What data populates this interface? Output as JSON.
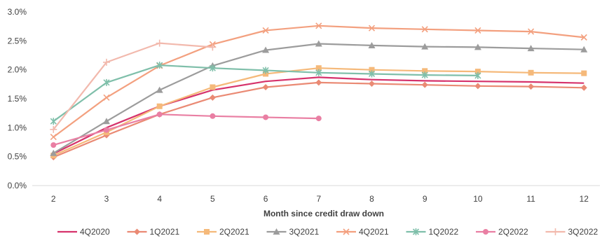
{
  "chart_data": {
    "type": "line",
    "title": "",
    "xlabel": "Month since credit draw down",
    "ylabel": "",
    "x": [
      2,
      3,
      4,
      5,
      6,
      7,
      8,
      9,
      10,
      11,
      12
    ],
    "xlim": [
      1.6,
      12.3
    ],
    "ylim": [
      0,
      3.0
    ],
    "y_ticks": [
      0,
      0.5,
      1.0,
      1.5,
      2.0,
      2.5,
      3.0
    ],
    "y_tick_labels": [
      "0.0%",
      "0.5%",
      "1.0%",
      "1.5%",
      "2.0%",
      "2.5%",
      "3.0%"
    ],
    "grid": false,
    "legend_position": "bottom",
    "series": [
      {
        "name": "4Q2020",
        "color": "#d6336c",
        "marker": "none",
        "values": [
          0.55,
          1.0,
          1.37,
          1.65,
          1.8,
          1.87,
          1.83,
          1.81,
          1.8,
          1.79,
          1.77
        ]
      },
      {
        "name": "1Q2021",
        "color": "#ea8a74",
        "marker": "diamond",
        "values": [
          0.49,
          0.87,
          1.23,
          1.52,
          1.7,
          1.78,
          1.76,
          1.74,
          1.72,
          1.71,
          1.69
        ]
      },
      {
        "name": "2Q2021",
        "color": "#f5b97a",
        "marker": "square",
        "values": [
          0.52,
          0.92,
          1.37,
          1.7,
          1.93,
          2.03,
          2.0,
          1.98,
          1.97,
          1.95,
          1.94
        ]
      },
      {
        "name": "3Q2021",
        "color": "#9c9c9c",
        "marker": "triangle",
        "values": [
          0.56,
          1.11,
          1.65,
          2.07,
          2.34,
          2.45,
          2.42,
          2.4,
          2.39,
          2.37,
          2.35
        ]
      },
      {
        "name": "4Q2021",
        "color": "#f3a07f",
        "marker": "x",
        "values": [
          0.84,
          1.52,
          2.07,
          2.44,
          2.68,
          2.76,
          2.72,
          2.7,
          2.68,
          2.66,
          2.56
        ]
      },
      {
        "name": "1Q2022",
        "color": "#7fbfaa",
        "marker": "star",
        "values": [
          1.11,
          1.78,
          2.08,
          2.03,
          1.99,
          1.95,
          1.93,
          1.91,
          1.9,
          null,
          null
        ]
      },
      {
        "name": "2Q2022",
        "color": "#e97fa3",
        "marker": "circle",
        "values": [
          0.7,
          0.96,
          1.23,
          1.2,
          1.18,
          1.16,
          null,
          null,
          null,
          null,
          null
        ]
      },
      {
        "name": "3Q2022",
        "color": "#f2b9ad",
        "marker": "plus",
        "values": [
          0.97,
          2.13,
          2.46,
          2.39,
          null,
          null,
          null,
          null,
          null,
          null,
          null
        ]
      }
    ]
  }
}
